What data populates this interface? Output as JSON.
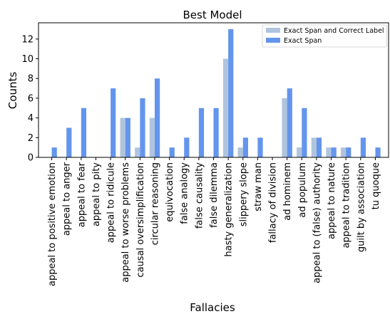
{
  "chart_data": {
    "type": "bar",
    "title": "Best Model",
    "xlabel": "Fallacies",
    "ylabel": "Counts",
    "ylim": [
      0,
      13.65
    ],
    "yticks": [
      0,
      2,
      4,
      6,
      8,
      10,
      12
    ],
    "grid": false,
    "legend_position": "top-right",
    "categories": [
      "appeal to positive emotion",
      "appeal to anger",
      "appeal to fear",
      "appeal to pity",
      "appeal to ridicule",
      "appeal to worse problems",
      "causal oversimplification",
      "circular reasoning",
      "equivocation",
      "false analogy",
      "false causality",
      "false dilemma",
      "hasty generalization",
      "slippery slope",
      "straw man",
      "fallacy of division",
      "ad hominem",
      "ad populum",
      "appeal to (false) authority",
      "appeal to nature",
      "appeal to tradition",
      "guilt by association",
      "tu quoque"
    ],
    "series": [
      {
        "name": "Exact Span and Correct Label",
        "color": "#b0c4de",
        "values": [
          0,
          0,
          0,
          0,
          0,
          4,
          1,
          4,
          0,
          0,
          0,
          0,
          10,
          1,
          0,
          0,
          6,
          1,
          2,
          1,
          1,
          0,
          0
        ]
      },
      {
        "name": "Exact Span",
        "color": "#6495ed",
        "values": [
          1,
          3,
          5,
          0,
          7,
          4,
          6,
          8,
          1,
          2,
          5,
          5,
          13,
          2,
          2,
          0,
          7,
          5,
          2,
          1,
          1,
          2,
          1
        ]
      }
    ]
  }
}
